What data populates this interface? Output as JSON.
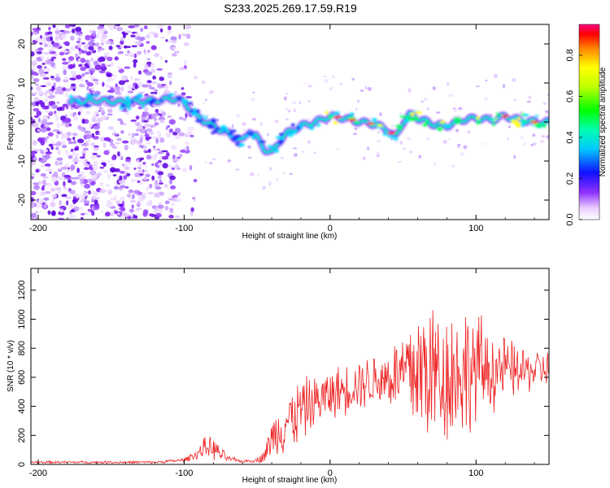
{
  "title": "S233.2025.269.17.59.R19",
  "colors": {
    "line": "#ee2222",
    "axis": "#000000"
  },
  "chart_data": [
    {
      "type": "heatmap",
      "xlabel": "Height of straight line (km)",
      "ylabel": "Frequency (Hz)",
      "xlim": [
        -205,
        150
      ],
      "ylim": [
        -25,
        25
      ],
      "xticks": [
        -200,
        -100,
        0,
        100
      ],
      "yticks": [
        -20,
        -10,
        0,
        10,
        20
      ],
      "ridge": {
        "x": [
          -178,
          -160,
          -140,
          -120,
          -105,
          -100,
          -95,
          -90,
          -80,
          -70,
          -60,
          -55,
          -50,
          -45,
          -40,
          -35,
          -30,
          -20,
          -10,
          0,
          10,
          20,
          30,
          40,
          45,
          50,
          55,
          60,
          70,
          80,
          90,
          100,
          110,
          120,
          130,
          140,
          150
        ],
        "y": [
          5,
          5.5,
          5,
          5.5,
          6,
          5,
          3,
          1,
          -1,
          -3,
          -5,
          -2,
          -4,
          -7,
          -8,
          -5,
          -3,
          -1,
          0,
          1.5,
          1,
          0,
          -0.5,
          -2,
          -4,
          0,
          2,
          1,
          -0.5,
          -1,
          0.5,
          1,
          0.5,
          1.5,
          0.5,
          0,
          0
        ]
      },
      "colorbar": {
        "label": "Normalized spectral amplitude",
        "range": [
          0,
          0.95
        ],
        "ticks": [
          "0.0",
          "0.2",
          "0.4",
          "0.6",
          "0.8"
        ],
        "tick_values": [
          0,
          0.2,
          0.4,
          0.6,
          0.8
        ]
      }
    },
    {
      "type": "line",
      "xlabel": "Height of straight line (km)",
      "ylabel": "SNR (10 * v/v)",
      "xlim": [
        -205,
        150
      ],
      "ylim": [
        0,
        1350
      ],
      "xticks": [
        -200,
        -100,
        0,
        100
      ],
      "yticks": [
        0,
        200,
        400,
        600,
        800,
        1000,
        1200
      ],
      "envelope": {
        "x": [
          -205,
          -120,
          -100,
          -90,
          -85,
          -80,
          -75,
          -70,
          -60,
          -50,
          -45,
          -40,
          -30,
          -25,
          -20,
          -10,
          0,
          10,
          20,
          30,
          40,
          50,
          60,
          70,
          80,
          90,
          100,
          110,
          120,
          130,
          140,
          150
        ],
        "mean": [
          15,
          15,
          30,
          80,
          120,
          110,
          70,
          40,
          20,
          30,
          60,
          180,
          300,
          320,
          380,
          430,
          480,
          520,
          560,
          580,
          600,
          620,
          650,
          640,
          620,
          640,
          660,
          650,
          660,
          640,
          650,
          660
        ],
        "spread": [
          10,
          10,
          15,
          50,
          90,
          90,
          60,
          25,
          10,
          20,
          60,
          150,
          250,
          250,
          250,
          200,
          200,
          200,
          200,
          220,
          250,
          350,
          600,
          600,
          550,
          550,
          450,
          350,
          250,
          200,
          160,
          140
        ]
      }
    }
  ]
}
